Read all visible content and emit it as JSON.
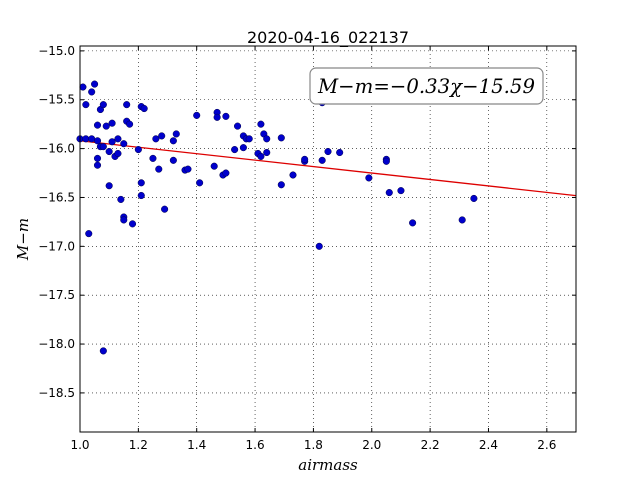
{
  "chart_data": {
    "type": "scatter",
    "title": "2020-04-16_022137",
    "xlabel": "airmass",
    "ylabel": "M−m",
    "xlim": [
      1.0,
      2.7
    ],
    "ylim": [
      -18.9,
      -14.95
    ],
    "y_inverted": true,
    "grid": true,
    "grid_style": "dotted",
    "x_ticks": [
      1.0,
      1.2,
      1.4,
      1.6,
      1.8,
      2.0,
      2.2,
      2.4,
      2.6
    ],
    "x_tick_labels": [
      "1.0",
      "1.2",
      "1.4",
      "1.6",
      "1.8",
      "2.0",
      "2.2",
      "2.4",
      "2.6"
    ],
    "y_ticks": [
      -15.0,
      -15.5,
      -16.0,
      -16.5,
      -17.0,
      -17.5,
      -18.0,
      -18.5
    ],
    "y_tick_labels": [
      "−15.0",
      "−15.5",
      "−16.0",
      "−16.5",
      "−17.0",
      "−17.5",
      "−18.0",
      "−18.5"
    ],
    "point_color": "#0000cc",
    "fit_line": {
      "slope": -0.33,
      "intercept": -15.59,
      "color": "#dd0000",
      "label": "M−m=−0.33χ−15.59",
      "label_position": "top-right"
    },
    "points": [
      [
        1.01,
        -15.37
      ],
      [
        1.02,
        -15.55
      ],
      [
        1.04,
        -15.42
      ],
      [
        1.05,
        -15.34
      ],
      [
        1.06,
        -15.76
      ],
      [
        1.07,
        -15.6
      ],
      [
        1.08,
        -15.55
      ],
      [
        1.09,
        -15.77
      ],
      [
        1.11,
        -15.74
      ],
      [
        1.16,
        -15.72
      ],
      [
        1.16,
        -15.55
      ],
      [
        1.17,
        -15.75
      ],
      [
        1.21,
        -15.57
      ],
      [
        1.22,
        -15.59
      ],
      [
        1.0,
        -15.9
      ],
      [
        1.02,
        -15.9
      ],
      [
        1.04,
        -15.9
      ],
      [
        1.06,
        -15.92
      ],
      [
        1.07,
        -15.98
      ],
      [
        1.08,
        -15.98
      ],
      [
        1.1,
        -16.03
      ],
      [
        1.11,
        -15.93
      ],
      [
        1.13,
        -15.9
      ],
      [
        1.15,
        -15.95
      ],
      [
        1.12,
        -16.08
      ],
      [
        1.13,
        -16.05
      ],
      [
        1.06,
        -16.1
      ],
      [
        1.06,
        -16.17
      ],
      [
        1.2,
        -16.01
      ],
      [
        1.25,
        -16.1
      ],
      [
        1.26,
        -15.9
      ],
      [
        1.28,
        -15.87
      ],
      [
        1.32,
        -15.92
      ],
      [
        1.33,
        -15.85
      ],
      [
        1.32,
        -16.12
      ],
      [
        1.27,
        -16.21
      ],
      [
        1.36,
        -16.22
      ],
      [
        1.37,
        -16.21
      ],
      [
        1.41,
        -16.35
      ],
      [
        1.4,
        -15.66
      ],
      [
        1.47,
        -15.63
      ],
      [
        1.47,
        -15.68
      ],
      [
        1.5,
        -15.67
      ],
      [
        1.54,
        -15.77
      ],
      [
        1.56,
        -15.87
      ],
      [
        1.57,
        -15.9
      ],
      [
        1.58,
        -15.9
      ],
      [
        1.53,
        -16.01
      ],
      [
        1.56,
        -15.99
      ],
      [
        1.46,
        -16.18
      ],
      [
        1.49,
        -16.27
      ],
      [
        1.5,
        -16.25
      ],
      [
        1.62,
        -15.75
      ],
      [
        1.63,
        -15.85
      ],
      [
        1.64,
        -15.9
      ],
      [
        1.64,
        -16.04
      ],
      [
        1.61,
        -16.05
      ],
      [
        1.62,
        -16.08
      ],
      [
        1.69,
        -15.89
      ],
      [
        1.69,
        -16.37
      ],
      [
        1.73,
        -16.27
      ],
      [
        1.77,
        -16.13
      ],
      [
        1.77,
        -16.11
      ],
      [
        1.83,
        -16.12
      ],
      [
        1.85,
        -16.03
      ],
      [
        1.89,
        -16.04
      ],
      [
        1.83,
        -15.53
      ],
      [
        1.82,
        -17.0
      ],
      [
        1.99,
        -16.3
      ],
      [
        2.05,
        -16.11
      ],
      [
        2.05,
        -16.13
      ],
      [
        2.06,
        -16.45
      ],
      [
        2.1,
        -16.43
      ],
      [
        2.14,
        -16.76
      ],
      [
        2.31,
        -16.73
      ],
      [
        2.35,
        -16.51
      ],
      [
        1.1,
        -16.38
      ],
      [
        1.14,
        -16.52
      ],
      [
        1.15,
        -16.7
      ],
      [
        1.15,
        -16.73
      ],
      [
        1.18,
        -16.77
      ],
      [
        1.21,
        -16.35
      ],
      [
        1.21,
        -16.48
      ],
      [
        1.29,
        -16.62
      ],
      [
        1.03,
        -16.87
      ],
      [
        1.08,
        -18.07
      ]
    ]
  }
}
